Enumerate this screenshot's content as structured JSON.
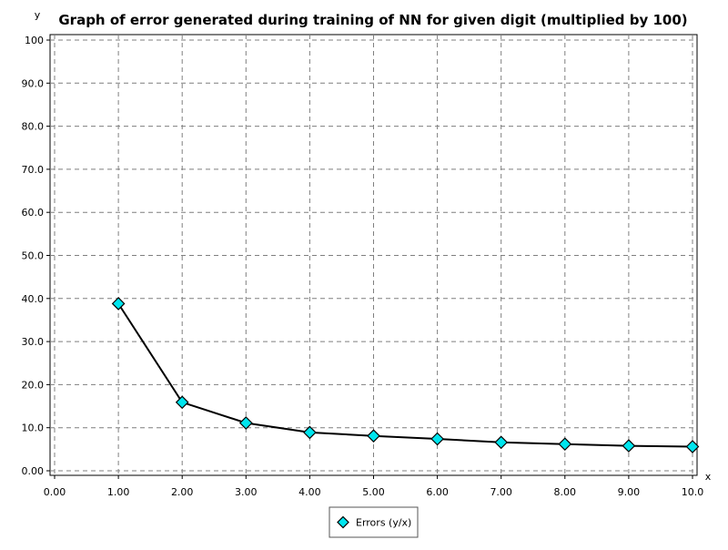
{
  "chart_data": {
    "type": "line",
    "title": "Graph of error generated during training of NN for given digit (multiplied by 100)",
    "xlabel": "x",
    "ylabel": "y",
    "xlim": [
      0,
      10
    ],
    "ylim": [
      0,
      100
    ],
    "x_ticks": [
      0,
      1,
      2,
      3,
      4,
      5,
      6,
      7,
      8,
      9,
      10
    ],
    "x_tick_labels": [
      "0.00",
      "1.00",
      "2.00",
      "3.00",
      "4.00",
      "5.00",
      "6.00",
      "7.00",
      "8.00",
      "9.00",
      "10.0"
    ],
    "y_ticks": [
      0,
      10,
      20,
      30,
      40,
      50,
      60,
      70,
      80,
      90,
      100
    ],
    "y_tick_labels": [
      "0.00",
      "10.0",
      "20.0",
      "30.0",
      "40.0",
      "50.0",
      "60.0",
      "70.0",
      "80.0",
      "90.0",
      "100"
    ],
    "grid": true,
    "legend_position": "bottom",
    "colors": {
      "marker_fill": "#00e5ee",
      "line": "#000000",
      "grid": "#7f7f7f",
      "text": "#000000"
    },
    "series": [
      {
        "name": "Errors (y/x)",
        "marker": "diamond",
        "x": [
          1,
          2,
          3,
          4,
          5,
          6,
          7,
          8,
          9,
          10
        ],
        "y": [
          38.8,
          15.9,
          11.1,
          8.9,
          8.1,
          7.4,
          6.6,
          6.2,
          5.8,
          5.6
        ]
      }
    ]
  }
}
